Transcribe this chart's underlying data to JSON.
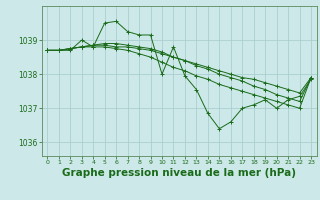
{
  "background_color": "#cce8e8",
  "grid_color": "#aacece",
  "line_color": "#1a6b1a",
  "xlabel": "Graphe pression niveau de la mer (hPa)",
  "xlabel_fontsize": 7.5,
  "xlim": [
    -0.5,
    23.5
  ],
  "ylim": [
    1035.6,
    1040.0
  ],
  "yticks": [
    1036,
    1037,
    1038,
    1039
  ],
  "xticks": [
    0,
    1,
    2,
    3,
    4,
    5,
    6,
    7,
    8,
    9,
    10,
    11,
    12,
    13,
    14,
    15,
    16,
    17,
    18,
    19,
    20,
    21,
    22,
    23
  ],
  "series": [
    [
      1038.7,
      1038.7,
      1038.7,
      1039.0,
      1038.8,
      1039.5,
      1039.55,
      1039.25,
      1039.15,
      1039.15,
      1038.0,
      1038.8,
      1037.95,
      1037.55,
      1036.85,
      1036.4,
      1036.6,
      1037.0,
      1037.1,
      1037.25,
      1037.0,
      1037.25,
      1037.35,
      1037.85
    ],
    [
      1038.7,
      1038.7,
      1038.75,
      1038.8,
      1038.8,
      1038.8,
      1038.75,
      1038.7,
      1038.6,
      1038.5,
      1038.35,
      1038.2,
      1038.1,
      1037.95,
      1037.85,
      1037.7,
      1037.6,
      1037.5,
      1037.4,
      1037.3,
      1037.2,
      1037.1,
      1037.0,
      1037.9
    ],
    [
      1038.7,
      1038.7,
      1038.75,
      1038.8,
      1038.85,
      1038.85,
      1038.8,
      1038.8,
      1038.75,
      1038.7,
      1038.6,
      1038.5,
      1038.4,
      1038.25,
      1038.15,
      1038.0,
      1037.9,
      1037.8,
      1037.65,
      1037.55,
      1037.4,
      1037.3,
      1037.2,
      1037.9
    ],
    [
      1038.7,
      1038.7,
      1038.75,
      1038.8,
      1038.85,
      1038.9,
      1038.9,
      1038.85,
      1038.8,
      1038.75,
      1038.65,
      1038.5,
      1038.4,
      1038.3,
      1038.2,
      1038.1,
      1038.0,
      1037.9,
      1037.85,
      1037.75,
      1037.65,
      1037.55,
      1037.45,
      1037.9
    ]
  ]
}
